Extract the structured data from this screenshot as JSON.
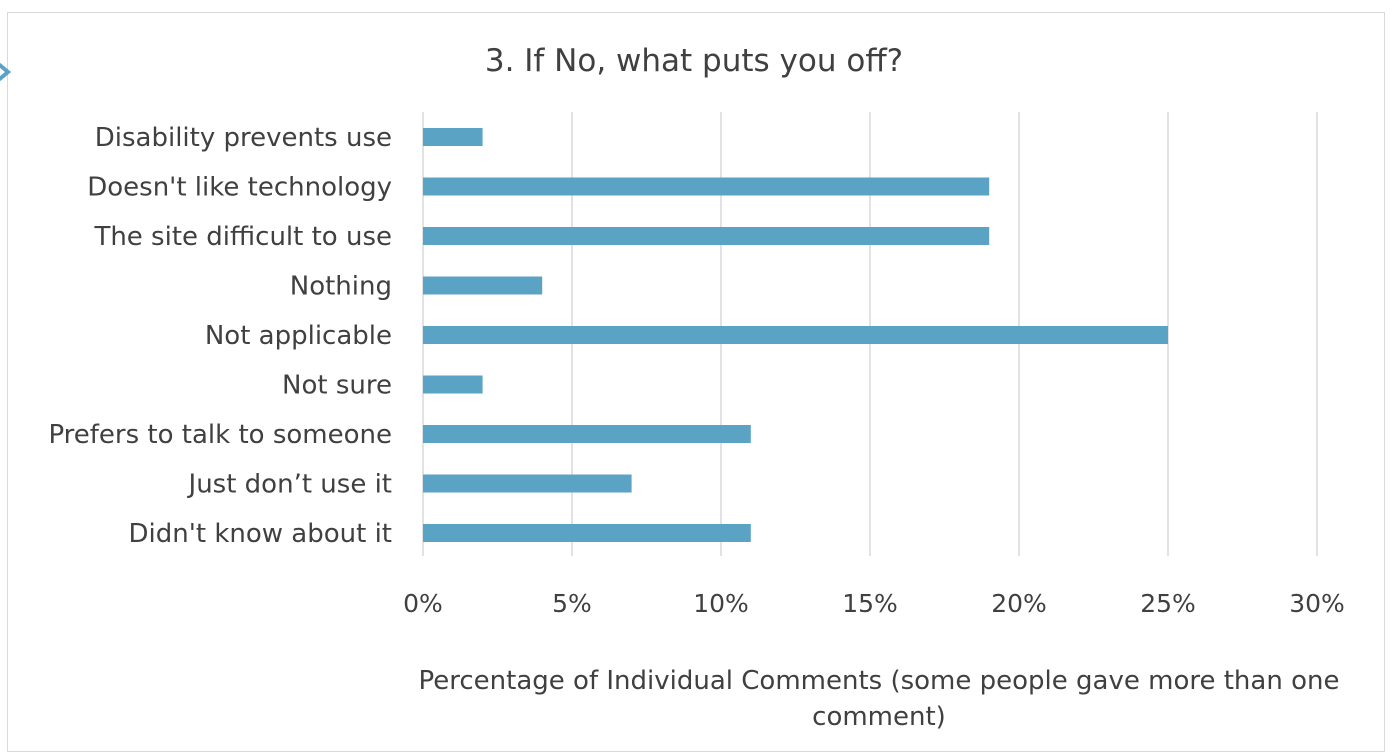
{
  "chart_data": {
    "type": "bar",
    "orientation": "horizontal",
    "title": "3. If No, what puts you off?",
    "xlabel": "Percentage of Individual Comments (some people gave more than one comment)",
    "xlabel_lines": [
      "Percentage of Individual Comments (some people gave more than one",
      "comment)"
    ],
    "ylabel": "",
    "categories": [
      "Disability prevents use",
      "Doesn't like technology",
      "The site difficult to use",
      "Nothing",
      "Not applicable",
      "Not sure",
      "Prefers to talk to someone",
      "Just don’t use it",
      "Didn't know about it"
    ],
    "values": [
      2,
      19,
      19,
      4,
      25,
      2,
      11,
      7,
      11
    ],
    "unit": "%",
    "xlim": [
      0,
      30
    ],
    "ticks": [
      0,
      5,
      10,
      15,
      20,
      25,
      30
    ],
    "tick_labels": [
      "0%",
      "5%",
      "10%",
      "15%",
      "20%",
      "25%",
      "30%"
    ],
    "grid": "vertical",
    "legend": "none",
    "bar_color": "#5ba3c5",
    "grid_color": "#d9d9d9",
    "text_color": "#404040"
  }
}
